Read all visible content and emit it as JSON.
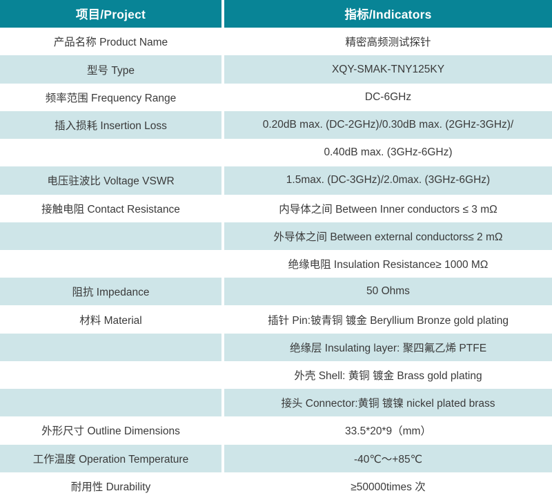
{
  "colors": {
    "header_bg": "#088496",
    "row_alt_bg": "#cee5e8",
    "header_text": "#ffffff",
    "body_text": "#3a3a3a"
  },
  "table": {
    "header": {
      "project": "项目/Project",
      "indicators": "指标/Indicators"
    },
    "rows": [
      {
        "project": "产品名称 Product Name",
        "indicator": "精密高频测试探针"
      },
      {
        "project": "型号 Type",
        "indicator": "XQY-SMAK-TNY125KY"
      },
      {
        "project": "频率范围 Frequency Range",
        "indicator": "DC-6GHz"
      },
      {
        "project": "插入损耗 Insertion Loss",
        "indicator": "0.20dB max. (DC-2GHz)/0.30dB max. (2GHz-3GHz)/"
      },
      {
        "project": "",
        "indicator": "0.40dB max. (3GHz-6GHz)"
      },
      {
        "project": "电压驻波比 Voltage VSWR",
        "indicator": "1.5max. (DC-3GHz)/2.0max. (3GHz-6GHz)"
      },
      {
        "project": "接触电阻 Contact Resistance",
        "indicator": "内导体之间 Between Inner conductors ≤ 3 mΩ"
      },
      {
        "project": "",
        "indicator": "外导体之间 Between external conductors≤ 2 mΩ"
      },
      {
        "project": "",
        "indicator": "绝缘电阻 Insulation Resistance≥ 1000 MΩ"
      },
      {
        "project": "阻抗 Impedance",
        "indicator": "50 Ohms"
      },
      {
        "project": "材料 Material",
        "indicator": "插针 Pin:铍青铜 镀金 Beryllium Bronze gold plating"
      },
      {
        "project": "",
        "indicator": "绝缘层 Insulating layer: 聚四氟乙烯 PTFE"
      },
      {
        "project": "",
        "indicator": "外壳 Shell: 黄铜 镀金 Brass gold plating"
      },
      {
        "project": "",
        "indicator": "接头 Connector:黄铜 镀镍 nickel plated brass"
      },
      {
        "project": "外形尺寸 Outline Dimensions",
        "indicator": "33.5*20*9（mm）"
      },
      {
        "project": "工作温度 Operation Temperature",
        "indicator": "-40℃～+85℃"
      },
      {
        "project": "耐用性 Durability",
        "indicator": "≥50000times 次"
      }
    ]
  }
}
